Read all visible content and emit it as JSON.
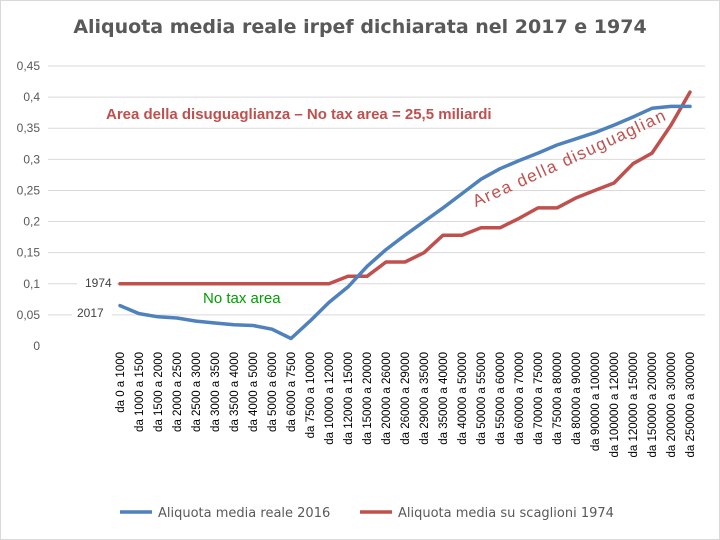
{
  "chart_data": {
    "type": "line",
    "title": "Aliquota media reale irpef dichiarata nel 2017 e 1974",
    "y_ticks": [
      "0",
      "0,05",
      "0,1",
      "0,15",
      "0,2",
      "0,25",
      "0,3",
      "0,35",
      "0,4",
      "0,45"
    ],
    "ylim": [
      0,
      0.45
    ],
    "grid": true,
    "legend_position": "bottom",
    "categories": [
      "da 0 a 1000",
      "da 1000 a 1500",
      "da 1500 a 2000",
      "da 2000 a 2500",
      "da 2500 a 3000",
      "da 3000 a 3500",
      "da 3500 a 4000",
      "da 4000 a 5000",
      "da 5000 a 6000",
      "da 6000 a 7500",
      "da 7500 a 10000",
      "da 10000 a 12000",
      "da 12000 a 15000",
      "da 15000 a 20000",
      "da 20000 a 26000",
      "da 26000 a 29000",
      "da 29000 a 35000",
      "da 35000 a 40000",
      "da 40000 a 50000",
      "da 50000 a 55000",
      "da 55000 a 60000",
      "da 60000 a 70000",
      "da 70000 a 75000",
      "da 75000 a 80000",
      "da 80000 a 90000",
      "da 90000 a 100000",
      "da 100000 a 120000",
      "da 120000 a 150000",
      "da 150000 a 200000",
      "da 200000 a 300000",
      "da 250000 a 300000"
    ],
    "series": [
      {
        "name": "Aliquota media reale 2016",
        "color": "#4f81bd",
        "values": [
          0.065,
          0.052,
          0.047,
          0.045,
          0.04,
          0.037,
          0.034,
          0.033,
          0.027,
          0.012,
          0.04,
          0.07,
          0.095,
          0.128,
          0.155,
          0.178,
          0.2,
          0.222,
          0.245,
          0.268,
          0.285,
          0.298,
          0.31,
          0.323,
          0.333,
          0.343,
          0.355,
          0.368,
          0.382,
          0.385,
          0.385
        ]
      },
      {
        "name": "Aliquota media su scaglioni 1974",
        "color": "#c0504d",
        "values": [
          0.1,
          0.1,
          0.1,
          0.1,
          0.1,
          0.1,
          0.1,
          0.1,
          0.1,
          0.1,
          0.1,
          0.1,
          0.112,
          0.112,
          0.135,
          0.135,
          0.15,
          0.178,
          0.178,
          0.19,
          0.19,
          0.205,
          0.222,
          0.222,
          0.238,
          0.25,
          0.262,
          0.293,
          0.31,
          0.355,
          0.408
        ]
      }
    ],
    "annotations": {
      "area_title": "Area della disuguaglianza – No tax area = 25,5 miliardi",
      "no_tax_area": "No tax area",
      "curved_label": "Area della disuguaglianza",
      "label_1974": "1974",
      "label_2017": "2017"
    }
  }
}
